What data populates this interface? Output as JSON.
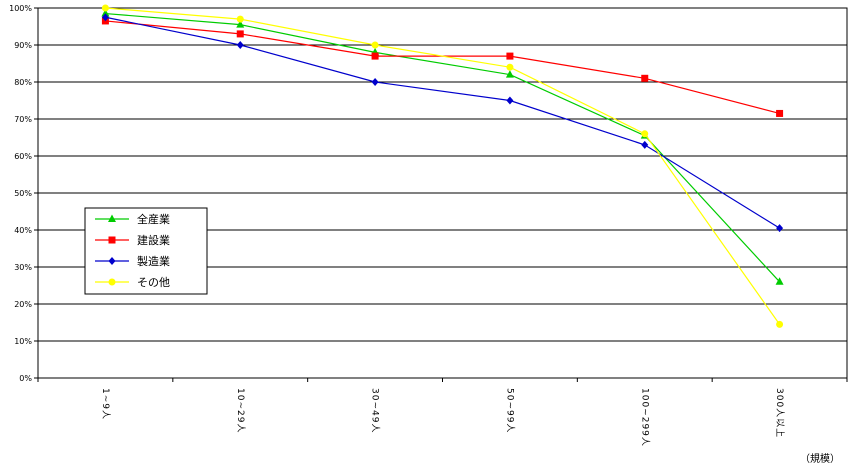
{
  "chart_data": {
    "type": "line",
    "categories": [
      "1~9人",
      "10~29人",
      "30~49人",
      "50~99人",
      "100~299人",
      "300人以上"
    ],
    "y_ticks": [
      "0%",
      "10%",
      "20%",
      "30%",
      "40%",
      "50%",
      "60%",
      "70%",
      "80%",
      "90%",
      "100%"
    ],
    "ylim": [
      0,
      100
    ],
    "grid": true,
    "legend_position": "left",
    "unit_label": "（規模）",
    "series": [
      {
        "name": "全産業",
        "color": "#00cc00",
        "marker": "triangle",
        "values": [
          98.5,
          95.5,
          88,
          82,
          65.5,
          26
        ]
      },
      {
        "name": "建設業",
        "color": "#ff0000",
        "marker": "square",
        "values": [
          96.5,
          93,
          87,
          87,
          81,
          71.5
        ]
      },
      {
        "name": "製造業",
        "color": "#0000cc",
        "marker": "diamond",
        "values": [
          97.5,
          90,
          80,
          75,
          63,
          40.5
        ]
      },
      {
        "name": "その他",
        "color": "#ffff00",
        "marker": "circle",
        "values": [
          100,
          97,
          90,
          84,
          66,
          14.5
        ]
      }
    ]
  }
}
